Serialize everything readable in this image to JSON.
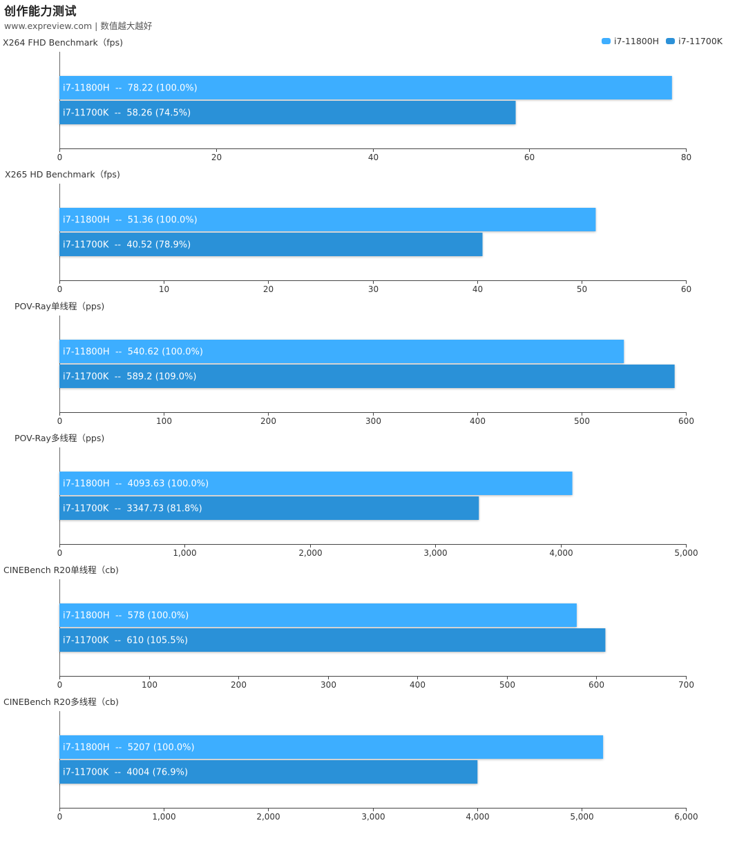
{
  "header": {
    "title": "创作能力测试",
    "subtitle": "www.expreview.com | 数值越大越好"
  },
  "legend": [
    {
      "label": "i7-11800H",
      "color": "#3EAEFF"
    },
    {
      "label": "i7-11700K",
      "color": "#2C91D8"
    }
  ],
  "chart_data": [
    {
      "type": "bar",
      "title": "X264 FHD Benchmark（fps)",
      "categories": [
        "i7-11800H",
        "i7-11700K"
      ],
      "values": [
        78.22,
        58.26
      ],
      "labels": [
        "i7-11800H  --  78.22 (100.0%)",
        "i7-11700K  --  58.26 (74.5%)"
      ],
      "xlim": [
        0,
        80
      ],
      "ticks": [
        0,
        20,
        40,
        60,
        80
      ],
      "tick_labels": [
        "0",
        "20",
        "40",
        "60",
        "80"
      ]
    },
    {
      "type": "bar",
      "title": "X265 HD Benchmark（fps)",
      "categories": [
        "i7-11800H",
        "i7-11700K"
      ],
      "values": [
        51.36,
        40.52
      ],
      "labels": [
        "i7-11800H  --  51.36 (100.0%)",
        "i7-11700K  --  40.52 (78.9%)"
      ],
      "xlim": [
        0,
        60
      ],
      "ticks": [
        0,
        10,
        20,
        30,
        40,
        50,
        60
      ],
      "tick_labels": [
        "0",
        "10",
        "20",
        "30",
        "40",
        "50",
        "60"
      ]
    },
    {
      "type": "bar",
      "title": "POV-Ray单线程（pps)",
      "categories": [
        "i7-11800H",
        "i7-11700K"
      ],
      "values": [
        540.62,
        589.2
      ],
      "labels": [
        "i7-11800H  --  540.62 (100.0%)",
        "i7-11700K  --  589.2 (109.0%)"
      ],
      "xlim": [
        0,
        600
      ],
      "ticks": [
        0,
        100,
        200,
        300,
        400,
        500,
        600
      ],
      "tick_labels": [
        "0",
        "100",
        "200",
        "300",
        "400",
        "500",
        "600"
      ]
    },
    {
      "type": "bar",
      "title": "POV-Ray多线程（pps)",
      "categories": [
        "i7-11800H",
        "i7-11700K"
      ],
      "values": [
        4093.63,
        3347.73
      ],
      "labels": [
        "i7-11800H  --  4093.63 (100.0%)",
        "i7-11700K  --  3347.73 (81.8%)"
      ],
      "xlim": [
        0,
        5000
      ],
      "ticks": [
        0,
        1000,
        2000,
        3000,
        4000,
        5000
      ],
      "tick_labels": [
        "0",
        "1,000",
        "2,000",
        "3,000",
        "4,000",
        "5,000"
      ]
    },
    {
      "type": "bar",
      "title": "CINEBench R20单线程（cb)",
      "categories": [
        "i7-11800H",
        "i7-11700K"
      ],
      "values": [
        578,
        610
      ],
      "labels": [
        "i7-11800H  --  578 (100.0%)",
        "i7-11700K  --  610 (105.5%)"
      ],
      "xlim": [
        0,
        700
      ],
      "ticks": [
        0,
        100,
        200,
        300,
        400,
        500,
        600,
        700
      ],
      "tick_labels": [
        "0",
        "100",
        "200",
        "300",
        "400",
        "500",
        "600",
        "700"
      ]
    },
    {
      "type": "bar",
      "title": "CINEBench R20多线程（cb)",
      "categories": [
        "i7-11800H",
        "i7-11700K"
      ],
      "values": [
        5207,
        4004
      ],
      "labels": [
        "i7-11800H  --  5207 (100.0%)",
        "i7-11700K  --  4004 (76.9%)"
      ],
      "xlim": [
        0,
        6000
      ],
      "ticks": [
        0,
        1000,
        2000,
        3000,
        4000,
        5000,
        6000
      ],
      "tick_labels": [
        "0",
        "1,000",
        "2,000",
        "3,000",
        "4,000",
        "5,000",
        "6,000"
      ]
    }
  ]
}
